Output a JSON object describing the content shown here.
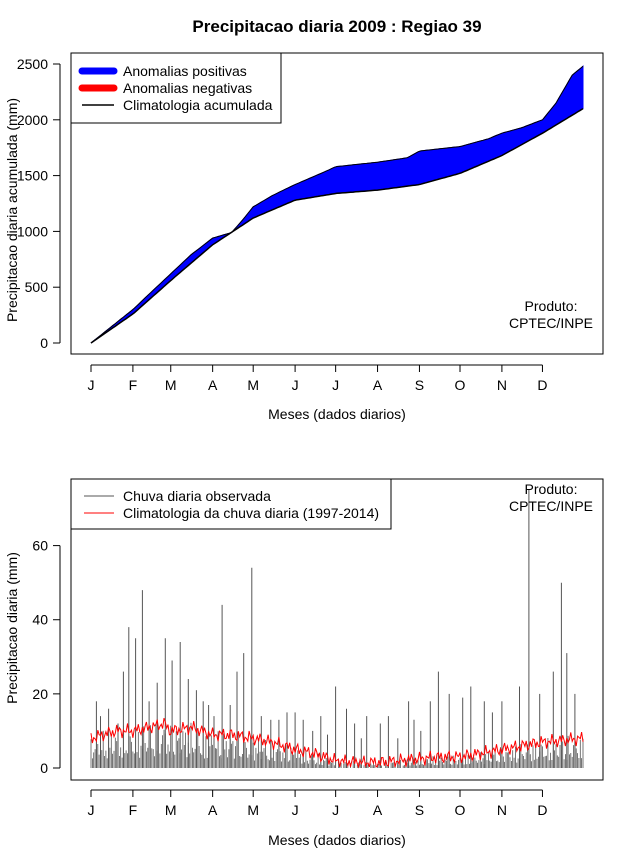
{
  "chart_data": [
    {
      "type": "area",
      "title": "Precipitacao diaria 2009 : Regiao 39",
      "xlabel": "Meses (dados diarios)",
      "ylabel": "Precipitacao diaria acumulada (mm)",
      "xlim": [
        1,
        365
      ],
      "ylim": [
        0,
        2500
      ],
      "yticks": [
        0,
        500,
        1000,
        1500,
        2000,
        2500
      ],
      "month_ticks": [
        "J",
        "F",
        "M",
        "A",
        "M",
        "J",
        "J",
        "A",
        "S",
        "O",
        "N",
        "D"
      ],
      "month_days": [
        1,
        32,
        60,
        91,
        121,
        152,
        182,
        213,
        244,
        274,
        305,
        335
      ],
      "legend": [
        {
          "label": "Anomalias positivas",
          "color": "#0000ff"
        },
        {
          "label": "Anomalias negativas",
          "color": "#ff0000"
        },
        {
          "label": "Climatologia acumulada",
          "color": "#000000"
        }
      ],
      "credit_line1": "Produto:",
      "credit_line2": "CPTEC/INPE",
      "climatology": {
        "x": [
          1,
          32,
          60,
          91,
          121,
          152,
          182,
          213,
          244,
          274,
          305,
          335,
          365
        ],
        "y": [
          0,
          260,
          560,
          880,
          1120,
          1280,
          1340,
          1370,
          1420,
          1520,
          1680,
          1880,
          2100
        ]
      },
      "observed": {
        "x": [
          1,
          32,
          45,
          60,
          75,
          91,
          105,
          113,
          121,
          135,
          152,
          175,
          182,
          213,
          235,
          244,
          274,
          295,
          305,
          320,
          335,
          345,
          357,
          365
        ],
        "y": [
          0,
          300,
          450,
          620,
          790,
          940,
          990,
          1100,
          1220,
          1320,
          1420,
          1540,
          1580,
          1620,
          1660,
          1720,
          1760,
          1830,
          1880,
          1930,
          2000,
          2150,
          2400,
          2480
        ]
      }
    },
    {
      "type": "bar",
      "xlabel": "Meses (dados diarios)",
      "ylabel": "Precipitacao diaria (mm)",
      "xlim": [
        1,
        365
      ],
      "ylim": [
        0,
        75
      ],
      "yticks": [
        0,
        20,
        40,
        60
      ],
      "month_ticks": [
        "J",
        "F",
        "M",
        "A",
        "M",
        "J",
        "J",
        "A",
        "S",
        "O",
        "N",
        "D"
      ],
      "month_days": [
        1,
        32,
        60,
        91,
        121,
        152,
        182,
        213,
        244,
        274,
        305,
        335
      ],
      "legend": [
        {
          "label": "Chuva diaria observada",
          "color": "#555555"
        },
        {
          "label": "Climatologia da chuva diaria (1997-2014)",
          "color": "#ff0000"
        }
      ],
      "credit_line1": "Produto:",
      "credit_line2": "CPTEC/INPE",
      "observed_peaks": {
        "day": [
          5,
          8,
          14,
          21,
          25,
          29,
          34,
          39,
          44,
          50,
          56,
          61,
          67,
          73,
          79,
          84,
          88,
          92,
          98,
          104,
          109,
          114,
          120,
          127,
          134,
          140,
          146,
          152,
          158,
          165,
          171,
          176,
          182,
          190,
          196,
          201,
          205,
          215,
          221,
          228,
          236,
          240,
          245,
          252,
          258,
          266,
          276,
          282,
          292,
          298,
          305,
          318,
          325,
          333,
          343,
          349,
          353,
          359
        ],
        "value": [
          18,
          14,
          16,
          12,
          26,
          38,
          35,
          48,
          18,
          23,
          35,
          29,
          34,
          24,
          21,
          18,
          17,
          14,
          44,
          17,
          26,
          31,
          54,
          14,
          13,
          13,
          15,
          15,
          13,
          10,
          14,
          9,
          22,
          16,
          12,
          8,
          14,
          12,
          14,
          8,
          18,
          13,
          10,
          18,
          26,
          20,
          19,
          22,
          18,
          15,
          18,
          22,
          75,
          20,
          26,
          50,
          31,
          20
        ]
      },
      "climatology_daily": {
        "x": [
          1,
          10,
          20,
          32,
          45,
          55,
          60,
          75,
          91,
          105,
          121,
          135,
          152,
          165,
          182,
          200,
          213,
          230,
          244,
          260,
          274,
          290,
          305,
          320,
          335,
          350,
          365
        ],
        "y": [
          8,
          9,
          10,
          10,
          11,
          12,
          10,
          11,
          9,
          9,
          8,
          7,
          5,
          4,
          2,
          1.5,
          1.5,
          2,
          2.5,
          3,
          3,
          4,
          5,
          6,
          7,
          7.5,
          8
        ]
      }
    }
  ]
}
